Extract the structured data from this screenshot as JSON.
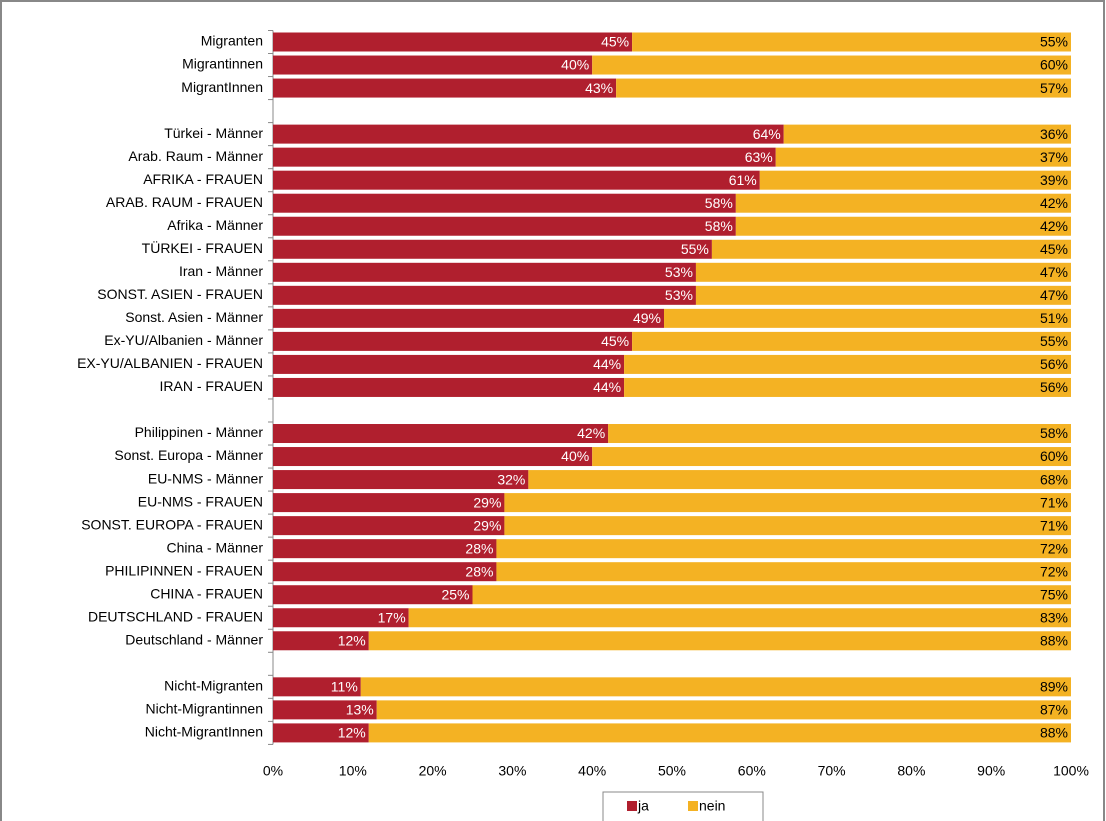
{
  "chart_data": {
    "type": "stacked_bar",
    "orientation": "horizontal",
    "categories": [
      "Migranten",
      "Migrantinnen",
      "MigrantInnen",
      null,
      "Türkei - Männer",
      "Arab. Raum - Männer",
      "AFRIKA - FRAUEN",
      "ARAB. RAUM - FRAUEN",
      "Afrika - Männer",
      "TÜRKEI - FRAUEN",
      "Iran - Männer",
      "SONST. ASIEN - FRAUEN",
      "Sonst. Asien - Männer",
      "Ex-YU/Albanien - Männer",
      "EX-YU/ALBANIEN - FRAUEN",
      "IRAN - FRAUEN",
      null,
      "Philippinen - Männer",
      "Sonst. Europa - Männer",
      "EU-NMS - Männer",
      "EU-NMS - FRAUEN",
      "SONST. EUROPA - FRAUEN",
      "China - Männer",
      "PHILIPINNEN - FRAUEN",
      "CHINA - FRAUEN",
      "DEUTSCHLAND - FRAUEN",
      "Deutschland - Männer",
      null,
      "Nicht-Migranten",
      "Nicht-Migrantinnen",
      "Nicht-MigrantInnen"
    ],
    "series": [
      {
        "name": "ja",
        "color": "#b01f2e",
        "label_color": "#ffffff",
        "values": [
          45,
          40,
          43,
          null,
          64,
          63,
          61,
          58,
          58,
          55,
          53,
          53,
          49,
          45,
          44,
          44,
          null,
          42,
          40,
          32,
          29,
          29,
          28,
          28,
          25,
          17,
          12,
          null,
          11,
          13,
          12
        ],
        "value_labels": [
          "45%",
          "40%",
          "43%",
          null,
          "64%",
          "63%",
          "61%",
          "58%",
          "58%",
          "55%",
          "53%",
          "53%",
          "49%",
          "45%",
          "44%",
          "44%",
          null,
          "42%",
          "40%",
          "32%",
          "29%",
          "29%",
          "28%",
          "28%",
          "25%",
          "17%",
          "12%",
          null,
          "11%",
          "13%",
          "12%"
        ]
      },
      {
        "name": "nein",
        "color": "#f4b223",
        "label_color": "#000000",
        "values": [
          55,
          60,
          57,
          null,
          36,
          37,
          39,
          42,
          42,
          45,
          47,
          47,
          51,
          55,
          56,
          56,
          null,
          58,
          60,
          68,
          71,
          71,
          72,
          72,
          75,
          83,
          88,
          null,
          89,
          87,
          88
        ],
        "value_labels": [
          "55%",
          "60%",
          "57%",
          null,
          "36%",
          "37%",
          "39%",
          "42%",
          "42%",
          "45%",
          "47%",
          "47%",
          "51%",
          "55%",
          "56%",
          "56%",
          null,
          "58%",
          "60%",
          "68%",
          "71%",
          "71%",
          "72%",
          "72%",
          "75%",
          "83%",
          "88%",
          null,
          "89%",
          "87%",
          "88%"
        ]
      }
    ],
    "xlim": [
      0,
      100
    ],
    "xticks": [
      {
        "value": 0,
        "label": "0%"
      },
      {
        "value": 10,
        "label": "10%"
      },
      {
        "value": 20,
        "label": "20%"
      },
      {
        "value": 30,
        "label": "30%"
      },
      {
        "value": 40,
        "label": "40%"
      },
      {
        "value": 50,
        "label": "50%"
      },
      {
        "value": 60,
        "label": "60%"
      },
      {
        "value": 70,
        "label": "70%"
      },
      {
        "value": 80,
        "label": "80%"
      },
      {
        "value": 90,
        "label": "90%"
      },
      {
        "value": 100,
        "label": "100%"
      }
    ],
    "legend": "bottom",
    "grid": false
  }
}
